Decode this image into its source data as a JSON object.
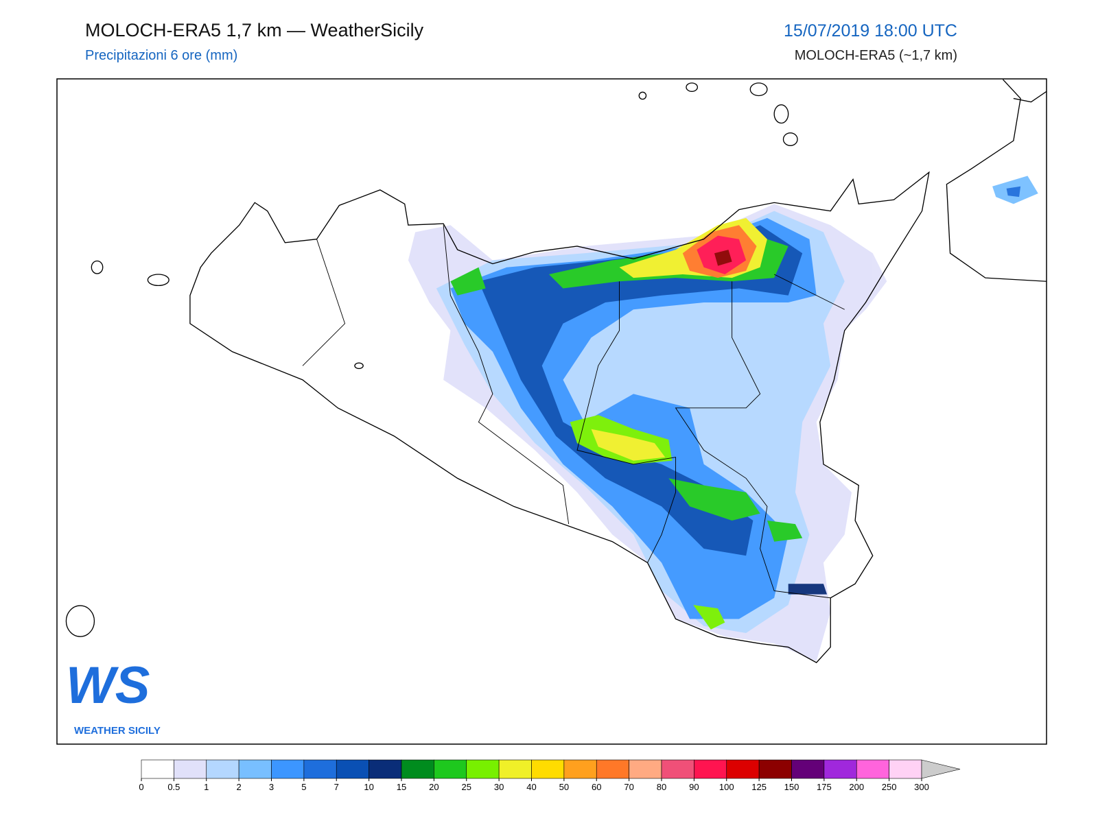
{
  "header": {
    "title": "MOLOCH-ERA5 1,7 km — WeatherSicily",
    "subtitle": "Precipitazioni 6 ore (mm)",
    "valid_time": "15/07/2019 18:00 UTC",
    "model": "MOLOCH-ERA5 (~1,7 km)"
  },
  "logo": {
    "mark": "WS",
    "name": "WEATHER SICILY"
  },
  "colorbar": {
    "bounds": [
      0,
      0.5,
      1,
      2,
      3,
      5,
      7,
      10,
      15,
      20,
      25,
      30,
      40,
      50,
      60,
      70,
      80,
      90,
      100,
      125,
      150,
      175,
      200,
      250,
      300
    ],
    "colors": [
      "#ffffff",
      "#e1e1fa",
      "#b4d7ff",
      "#78bfff",
      "#3c96ff",
      "#1e6edc",
      "#0a50b4",
      "#0a2d78",
      "#008c1e",
      "#1ec81e",
      "#78f000",
      "#f0f028",
      "#ffdc00",
      "#ffa01e",
      "#ff7828",
      "#ffaa82",
      "#f05078",
      "#ff1450",
      "#dc0000",
      "#8c0000",
      "#640078",
      "#a028dc",
      "#ff64dc",
      "#ffd2f5"
    ],
    "extend_color": "#cccccc"
  }
}
